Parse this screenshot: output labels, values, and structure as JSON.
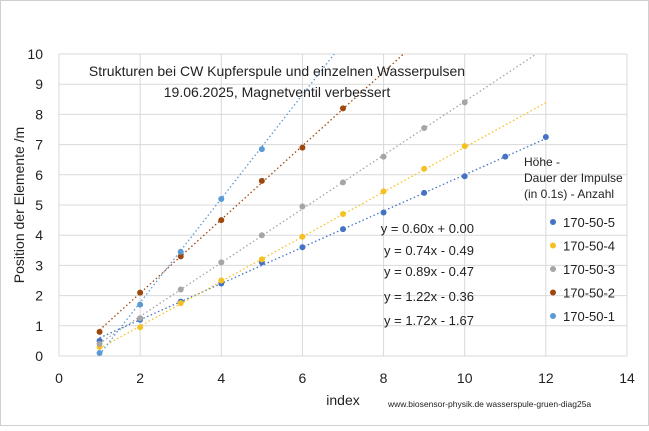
{
  "chart_data": {
    "type": "scatter",
    "title_lines": [
      "Strukturen bei CW Kupferspule und einzelnen Wasserpulsen",
      "19.06.2025, Magnetventil verbessert"
    ],
    "xlabel": "index",
    "ylabel": "Position der Elemente /m",
    "xlim": [
      0,
      14
    ],
    "ylim": [
      0,
      10
    ],
    "x_ticks": [
      0,
      2,
      4,
      6,
      8,
      10,
      12,
      14
    ],
    "y_ticks": [
      0,
      1,
      2,
      3,
      4,
      5,
      6,
      7,
      8,
      9,
      10
    ],
    "grid": true,
    "legend_position": "right",
    "legend_title_lines": [
      "Höhe -",
      "Dauer der Impulse",
      "(in 0.1s) -  Anzahl"
    ],
    "footer_text": "www.biosensor-physik.de  wasserspule-gruen-diag25a",
    "series": [
      {
        "name": "170-50-5",
        "color": "#4472C4",
        "trendline_label": "y = 0.60x + 0.00",
        "slope": 0.6,
        "intercept": 0.0,
        "x": [
          1,
          2,
          3,
          4,
          5,
          6,
          7,
          8,
          9,
          10,
          11,
          12
        ],
        "y": [
          0.5,
          1.2,
          1.8,
          2.4,
          3.1,
          3.6,
          4.2,
          4.75,
          5.4,
          5.95,
          6.6,
          7.25
        ]
      },
      {
        "name": "170-50-4",
        "color": "#F5C021",
        "trendline_label": "y = 0.74x - 0.49",
        "slope": 0.74,
        "intercept": -0.49,
        "x": [
          1,
          2,
          3,
          4,
          5,
          6,
          7,
          8,
          9,
          10
        ],
        "y": [
          0.3,
          0.95,
          1.75,
          2.5,
          3.2,
          3.95,
          4.7,
          5.45,
          6.2,
          6.95
        ]
      },
      {
        "name": "170-50-3",
        "color": "#A5A5A5",
        "trendline_label": "y = 0.89x - 0.47",
        "slope": 0.89,
        "intercept": -0.47,
        "x": [
          1,
          2,
          3,
          4,
          5,
          6,
          7,
          8,
          9,
          10
        ],
        "y": [
          0.4,
          1.25,
          2.2,
          3.1,
          4.0,
          4.95,
          5.75,
          6.6,
          7.55,
          8.4
        ]
      },
      {
        "name": "170-50-2",
        "color": "#9E480E",
        "trendline_label": "y = 1.22x - 0.36",
        "slope": 1.22,
        "intercept": -0.36,
        "x": [
          1,
          2,
          3,
          4,
          5,
          6,
          7
        ],
        "y": [
          0.8,
          2.1,
          3.3,
          4.5,
          5.8,
          6.9,
          8.2
        ]
      },
      {
        "name": "170-50-1",
        "color": "#5B9BD5",
        "trendline_label": "y = 1.72x - 1.67",
        "slope": 1.72,
        "intercept": -1.67,
        "x": [
          1,
          2,
          3,
          4,
          5
        ],
        "y": [
          0.1,
          1.7,
          3.45,
          5.2,
          6.85
        ]
      }
    ]
  }
}
